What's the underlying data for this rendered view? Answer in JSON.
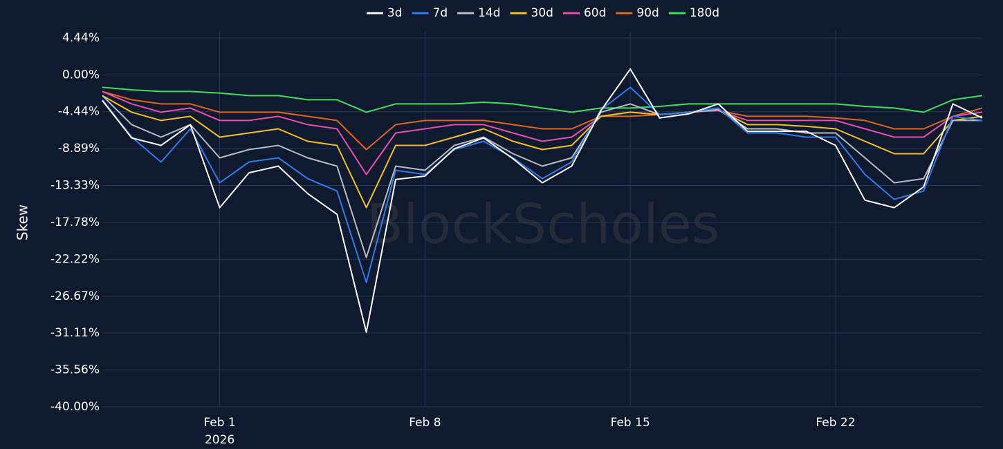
{
  "chart_data": {
    "type": "line",
    "watermark": "BlockScholes",
    "y_label": "Skew",
    "x": [
      "2026-01-28",
      "2026-01-29",
      "2026-01-30",
      "2026-01-31",
      "2026-02-01",
      "2026-02-02",
      "2026-02-03",
      "2026-02-04",
      "2026-02-05",
      "2026-02-06",
      "2026-02-07",
      "2026-02-08",
      "2026-02-09",
      "2026-02-10",
      "2026-02-11",
      "2026-02-12",
      "2026-02-13",
      "2026-02-14",
      "2026-02-15",
      "2026-02-16",
      "2026-02-17",
      "2026-02-18",
      "2026-02-19",
      "2026-02-20",
      "2026-02-21",
      "2026-02-22",
      "2026-02-23",
      "2026-02-24",
      "2026-02-25",
      "2026-02-26",
      "2026-02-27"
    ],
    "xlim": [
      "2026-01-28",
      "2026-02-27"
    ],
    "xticks": [
      {
        "value": "2026-02-01",
        "label": [
          "Feb 1",
          "2026"
        ]
      },
      {
        "value": "2026-02-08",
        "label": [
          "Feb 8"
        ]
      },
      {
        "value": "2026-02-15",
        "label": [
          "Feb 15"
        ]
      },
      {
        "value": "2026-02-22",
        "label": [
          "Feb 22"
        ]
      }
    ],
    "ylim": [
      -40,
      4.44
    ],
    "yticks": [
      {
        "value": 4.44,
        "label": "4.44%"
      },
      {
        "value": 0,
        "label": "0.00%"
      },
      {
        "value": -4.44,
        "label": "-4.44%"
      },
      {
        "value": -8.89,
        "label": "-8.89%"
      },
      {
        "value": -13.33,
        "label": "-13.33%"
      },
      {
        "value": -17.78,
        "label": "-17.78%"
      },
      {
        "value": -22.22,
        "label": "-22.22%"
      },
      {
        "value": -26.67,
        "label": "-26.67%"
      },
      {
        "value": -31.11,
        "label": "-31.11%"
      },
      {
        "value": -35.56,
        "label": "-35.56%"
      },
      {
        "value": -40,
        "label": "-40.00%"
      }
    ],
    "grid": true,
    "legend": "top",
    "series": [
      {
        "name": "3d",
        "color": "#ffffff",
        "values": [
          -3.1,
          -7.6,
          -8.5,
          -6,
          -16,
          -11.8,
          -11,
          -14.3,
          -16.8,
          -31,
          -12.6,
          -12.2,
          -8.9,
          -7.6,
          -10.1,
          -13,
          -11,
          -4.3,
          0.7,
          -5.2,
          -4.7,
          -3.5,
          -6.8,
          -6.8,
          -6.8,
          -8.5,
          -15.1,
          -16,
          -13.5,
          -3.5,
          -5.2
        ]
      },
      {
        "name": "7d",
        "color": "#2f7bf0",
        "values": [
          -3,
          -7.5,
          -10.5,
          -6.5,
          -13,
          -10.5,
          -10,
          -12.5,
          -14,
          -25,
          -11.5,
          -12,
          -9,
          -8,
          -10,
          -12.5,
          -10.5,
          -4.2,
          -1.5,
          -4.8,
          -4.5,
          -4,
          -7,
          -7,
          -7.5,
          -7.5,
          -12,
          -15,
          -14,
          -5,
          -5.5
        ]
      },
      {
        "name": "14d",
        "color": "#b8bcc6",
        "values": [
          -2.5,
          -6,
          -7.5,
          -6,
          -10,
          -9,
          -8.5,
          -10,
          -11,
          -22,
          -11,
          -11.5,
          -8.5,
          -7.5,
          -9.5,
          -11,
          -10,
          -4.5,
          -3.5,
          -4.8,
          -4.5,
          -4.2,
          -6.5,
          -6.5,
          -7,
          -7,
          -10,
          -13,
          -12.5,
          -5.5,
          -5.5
        ]
      },
      {
        "name": "30d",
        "color": "#f5c21b",
        "values": [
          -2.5,
          -4.5,
          -5.5,
          -5,
          -7.5,
          -7,
          -6.5,
          -8,
          -8.5,
          -16,
          -8.5,
          -8.5,
          -7.5,
          -6.5,
          -8,
          -9,
          -8.5,
          -5,
          -4.5,
          -4.8,
          -4.5,
          -4.2,
          -6,
          -6,
          -6.2,
          -6.5,
          -8,
          -9.5,
          -9.5,
          -5.5,
          -5
        ]
      },
      {
        "name": "60d",
        "color": "#ea4fb0",
        "values": [
          -2,
          -3.5,
          -4.5,
          -4,
          -5.5,
          -5.5,
          -5,
          -6,
          -6.5,
          -12,
          -7,
          -6.5,
          -6,
          -6,
          -7,
          -8,
          -7.5,
          -5,
          -4.5,
          -4.8,
          -4.5,
          -4.3,
          -5.5,
          -5.5,
          -5.5,
          -5.5,
          -6.5,
          -7.5,
          -7.5,
          -5,
          -4.5
        ]
      },
      {
        "name": "90d",
        "color": "#e0661c",
        "values": [
          -2,
          -3,
          -3.5,
          -3.5,
          -4.5,
          -4.5,
          -4.5,
          -5,
          -5.5,
          -9,
          -6,
          -5.5,
          -5.5,
          -5.5,
          -6,
          -6.5,
          -6.5,
          -5,
          -5,
          -4.8,
          -4.5,
          -4.3,
          -5,
          -5,
          -5,
          -5.2,
          -5.5,
          -6.5,
          -6.5,
          -5,
          -4
        ]
      },
      {
        "name": "180d",
        "color": "#3ee05a",
        "values": [
          -1.5,
          -1.8,
          -2,
          -2,
          -2.2,
          -2.5,
          -2.5,
          -3,
          -3,
          -4.5,
          -3.5,
          -3.5,
          -3.5,
          -3.3,
          -3.5,
          -4,
          -4.5,
          -4,
          -4,
          -3.8,
          -3.5,
          -3.5,
          -3.5,
          -3.5,
          -3.5,
          -3.5,
          -3.8,
          -4,
          -4.5,
          -3,
          -2.5
        ]
      }
    ]
  }
}
